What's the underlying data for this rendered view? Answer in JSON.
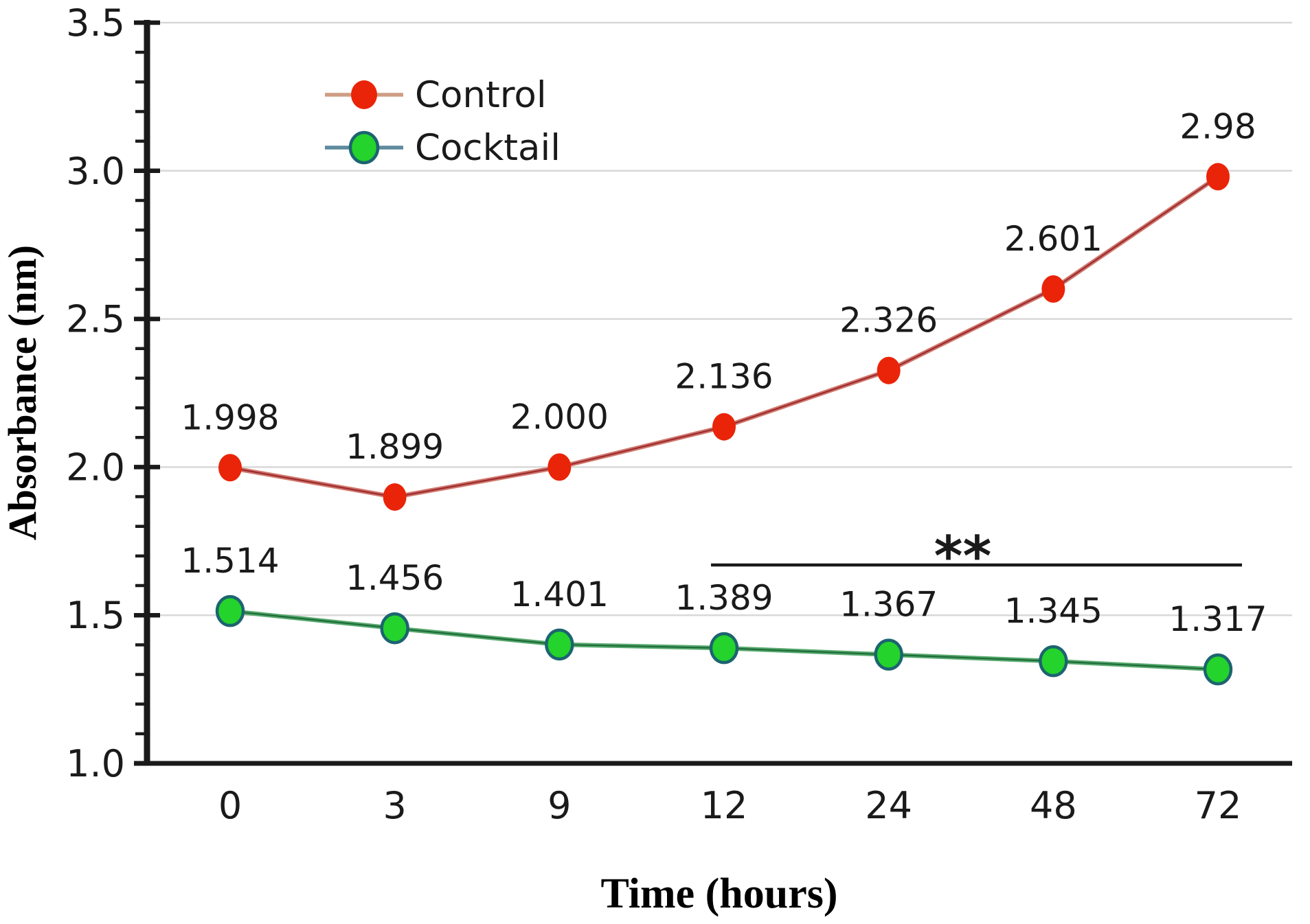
{
  "figure": {
    "background": "#ffffff"
  },
  "colors": {
    "grid": "#d8d8d8",
    "axis": "#1a1a1a",
    "text": "#1a1a1a",
    "annotation": "#1a1a1a"
  },
  "chart_data": {
    "type": "line",
    "title": "",
    "xlabel": "Time (hours)",
    "ylabel": "Absorbance (nm)",
    "categories": [
      "0",
      "3",
      "9",
      "12",
      "24",
      "48",
      "72"
    ],
    "ylim": [
      1.0,
      3.5
    ],
    "ytick_major_step": 0.5,
    "ytick_minor_step": 0.1,
    "yticks": [
      {
        "value": 3.5,
        "label": "3.5"
      },
      {
        "value": 3.0,
        "label": "3.0"
      },
      {
        "value": 2.5,
        "label": "2.5"
      },
      {
        "value": 2.0,
        "label": "2.0"
      },
      {
        "value": 1.5,
        "label": "1.5"
      },
      {
        "value": 1.0,
        "label": "1.0"
      }
    ],
    "grid": "horizontal-major",
    "legend_position": "top-left-inside",
    "series": [
      {
        "name": "Control",
        "values": [
          1.998,
          1.899,
          2.0,
          2.136,
          2.326,
          2.601,
          2.98
        ],
        "labels": [
          "1.998",
          "1.899",
          "2.000",
          "2.136",
          "2.326",
          "2.601",
          "2.98"
        ],
        "colors": {
          "line": "#d2776b",
          "line_core": "#9a2b31",
          "marker_fill": "#ea2408",
          "marker_stroke": "none",
          "legend_line": "#cf9d84"
        }
      },
      {
        "name": "Cocktail",
        "values": [
          1.514,
          1.456,
          1.401,
          1.389,
          1.367,
          1.345,
          1.317
        ],
        "labels": [
          "1.514",
          "1.456",
          "1.401",
          "1.389",
          "1.367",
          "1.345",
          "1.317"
        ],
        "colors": {
          "line": "#57a96d",
          "line_core": "#1e6b3a",
          "marker_fill": "#24d32b",
          "marker_stroke": "#1c6470",
          "legend_line": "#5f8a9d"
        }
      }
    ],
    "annotation": {
      "label": "**",
      "from_category": "12",
      "to_category": "72"
    }
  }
}
